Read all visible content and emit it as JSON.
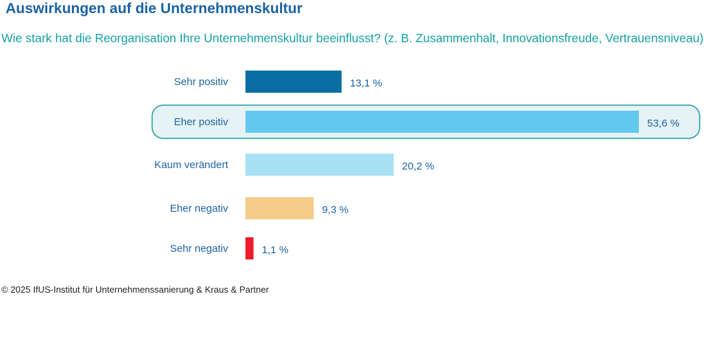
{
  "header": {
    "title": "Auswirkungen auf die Unternehmenskultur",
    "subtitle": "Wie stark hat die Reorganisation Ihre Unternehmenskultur beeinflusst? (z. B. Zusammenhalt, Innovationsfreude, Vertrauensniveau)"
  },
  "footer": {
    "copyright": "© 2025 IfUS-Institut für Unternehmenssanierung & Kraus & Partner"
  },
  "chart_data": {
    "type": "bar",
    "orientation": "horizontal",
    "categories": [
      "Sehr positiv",
      "Eher positiv",
      "Kaum verändert",
      "Eher negativ",
      "Sehr negativ"
    ],
    "values": [
      13.1,
      53.6,
      20.2,
      9.3,
      1.1
    ],
    "value_labels": [
      "13,1 %",
      "53,6 %",
      "20,2 %",
      "9,3 %",
      "1,1 %"
    ],
    "colors": [
      "#0b6ea3",
      "#63c8ee",
      "#a9e1f4",
      "#f5cc89",
      "#ee1b2a"
    ],
    "highlight_index": 1,
    "highlight_fill": "#e6f3f4",
    "highlight_stroke": "#1d9aa0",
    "xlim": [
      0,
      53.6
    ],
    "grid": false,
    "legend": "none"
  }
}
